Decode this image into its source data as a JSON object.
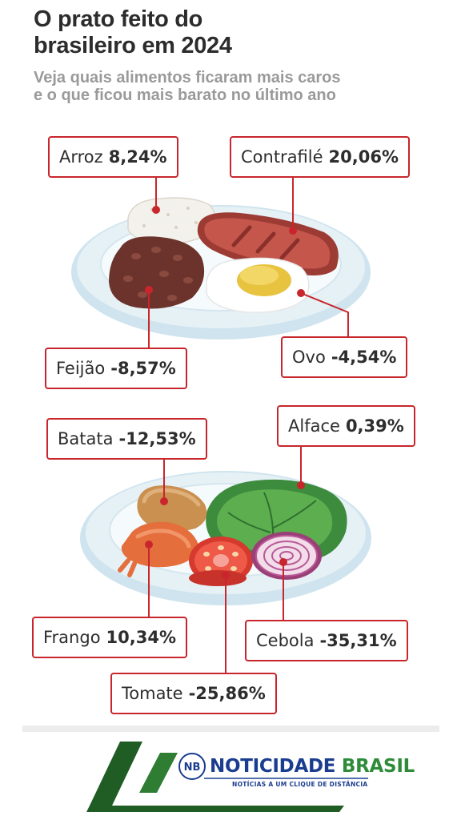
{
  "header": {
    "title_line1": "O prato feito do",
    "title_line2": "brasileiro em 2024",
    "subtitle_line1": "Veja quais alimentos ficaram mais caros",
    "subtitle_line2": "e o que ficou mais barato no último ano"
  },
  "items": [
    {
      "name": "Arroz",
      "change": "8,24%"
    },
    {
      "name": "Contrafilé",
      "change": "20,06%"
    },
    {
      "name": "Feijão",
      "change": "-8,57%"
    },
    {
      "name": "Ovo",
      "change": "-4,54%"
    },
    {
      "name": "Batata",
      "change": "-12,53%"
    },
    {
      "name": "Alface",
      "change": "0,39%"
    },
    {
      "name": "Frango",
      "change": "10,34%"
    },
    {
      "name": "Cebola",
      "change": "-35,31%"
    },
    {
      "name": "Tomate",
      "change": "-25,86%"
    }
  ],
  "logo": {
    "name_part1": "NOTICIDADE",
    "name_part2": "BRASIL",
    "tagline": "NOTÍCIAS A UM CLIQUE DE DISTÂNCIA",
    "monogram": "NB"
  },
  "colors": {
    "accent_red": "#c8262c",
    "logo_green": "#1f5d25",
    "logo_blue": "#1a3d8f"
  }
}
